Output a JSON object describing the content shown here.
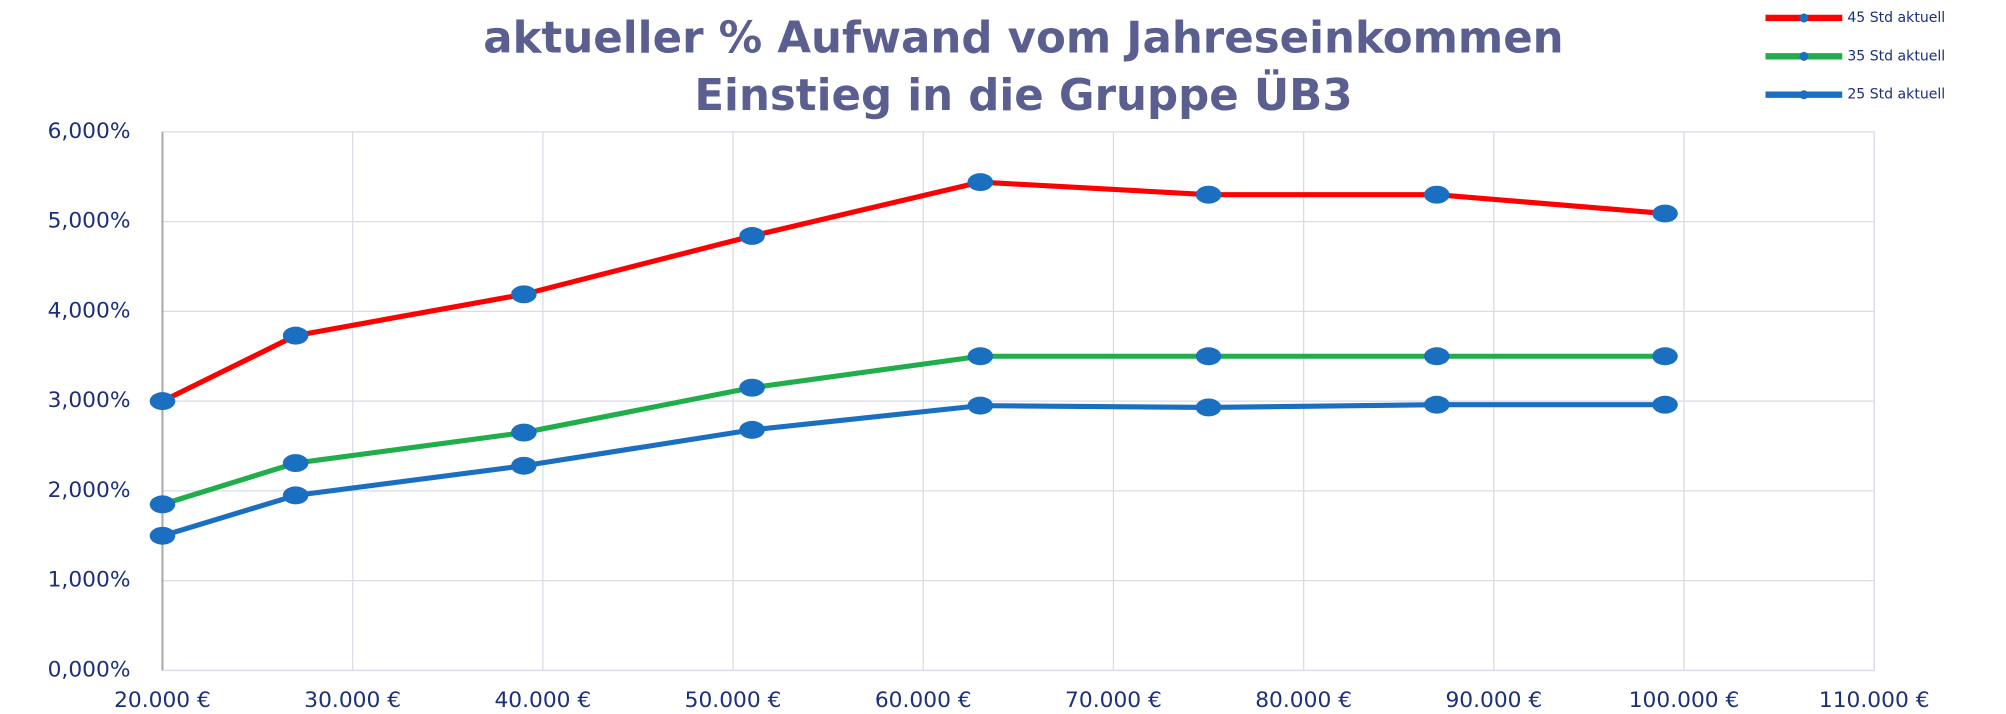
{
  "chart_data": {
    "type": "line",
    "title": "aktueller % Aufwand vom Jahreseinkommen",
    "subtitle": "Einstieg in die Gruppe ÜB3",
    "x": [
      20000,
      27000,
      39000,
      51000,
      63000,
      75000,
      87000,
      99000
    ],
    "series": [
      {
        "name": "45 Std aktuell",
        "color": "#ff0000",
        "values": [
          3.0,
          3.73,
          4.19,
          4.84,
          5.44,
          5.3,
          5.3,
          5.09
        ]
      },
      {
        "name": "35 Std aktuell",
        "color": "#1fae4a",
        "values": [
          1.85,
          2.31,
          2.65,
          3.15,
          3.5,
          3.5,
          3.5,
          3.5
        ]
      },
      {
        "name": "25 Std aktuell",
        "color": "#1a6fc0",
        "values": [
          1.5,
          1.95,
          2.28,
          2.68,
          2.95,
          2.93,
          2.96,
          2.96
        ]
      }
    ],
    "marker_color": "#1a6fc0",
    "xlim": [
      20000,
      110000
    ],
    "xticks": [
      {
        "value": 20000,
        "label": "20.000 €"
      },
      {
        "value": 30000,
        "label": "30.000 €"
      },
      {
        "value": 40000,
        "label": "40.000 €"
      },
      {
        "value": 50000,
        "label": "50.000 €"
      },
      {
        "value": 60000,
        "label": "60.000 €"
      },
      {
        "value": 70000,
        "label": "70.000 €"
      },
      {
        "value": 80000,
        "label": "80.000 €"
      },
      {
        "value": 90000,
        "label": "90.000 €"
      },
      {
        "value": 100000,
        "label": "100.000 €"
      },
      {
        "value": 110000,
        "label": "110.000 €"
      }
    ],
    "ylim": [
      0,
      6
    ],
    "yticks": [
      {
        "value": 0,
        "label": "0,000%"
      },
      {
        "value": 1,
        "label": "1,000%"
      },
      {
        "value": 2,
        "label": "2,000%"
      },
      {
        "value": 3,
        "label": "3,000%"
      },
      {
        "value": 4,
        "label": "4,000%"
      },
      {
        "value": 5,
        "label": "5,000%"
      },
      {
        "value": 6,
        "label": "6,000%"
      }
    ],
    "grid": true,
    "legend": "top-right"
  }
}
